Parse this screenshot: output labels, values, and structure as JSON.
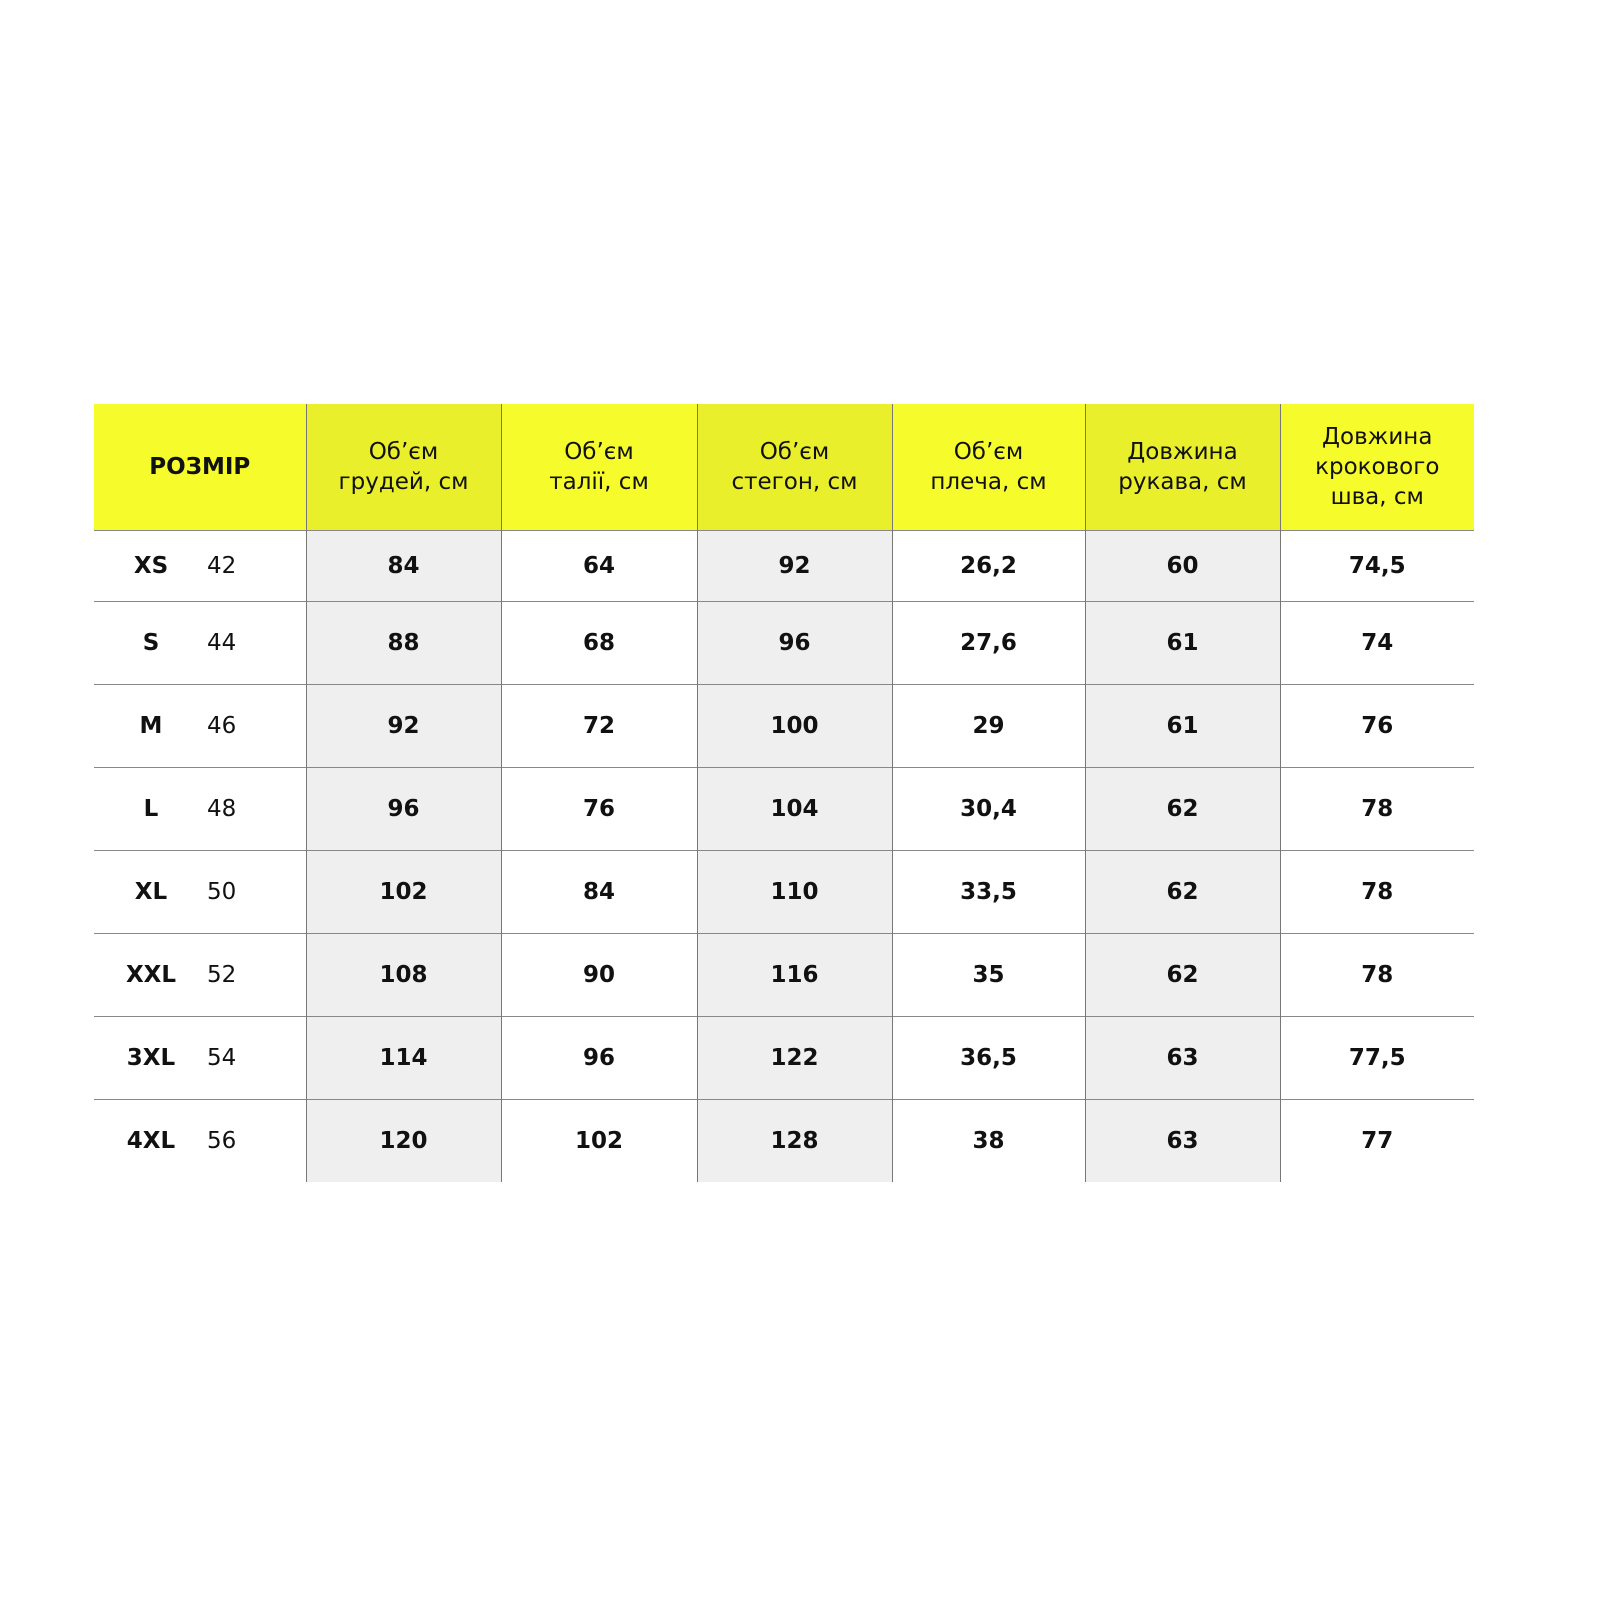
{
  "table": {
    "headers": [
      [
        "РОЗМІР"
      ],
      [
        "Об’єм",
        "грудей, см"
      ],
      [
        "Об’єм",
        "талії, см"
      ],
      [
        "Об’єм",
        "стегон, см"
      ],
      [
        "Об’єм",
        "плеча, см"
      ],
      [
        "Довжина",
        "рукава, см"
      ],
      [
        "Довжина",
        "крокового",
        "шва, см"
      ]
    ],
    "rows": [
      {
        "size": "XS",
        "eu": "42",
        "values": [
          "84",
          "64",
          "92",
          "26,2",
          "60",
          "74,5"
        ]
      },
      {
        "size": "S",
        "eu": "44",
        "values": [
          "88",
          "68",
          "96",
          "27,6",
          "61",
          "74"
        ]
      },
      {
        "size": "M",
        "eu": "46",
        "values": [
          "92",
          "72",
          "100",
          "29",
          "61",
          "76"
        ]
      },
      {
        "size": "L",
        "eu": "48",
        "values": [
          "96",
          "76",
          "104",
          "30,4",
          "62",
          "78"
        ]
      },
      {
        "size": "XL",
        "eu": "50",
        "values": [
          "102",
          "84",
          "110",
          "33,5",
          "62",
          "78"
        ]
      },
      {
        "size": "XXL",
        "eu": "52",
        "values": [
          "108",
          "90",
          "116",
          "35",
          "62",
          "78"
        ]
      },
      {
        "size": "3XL",
        "eu": "54",
        "values": [
          "114",
          "96",
          "122",
          "36,5",
          "63",
          "77,5"
        ]
      },
      {
        "size": "4XL",
        "eu": "56",
        "values": [
          "120",
          "102",
          "128",
          "38",
          "63",
          "77"
        ]
      }
    ]
  },
  "colors": {
    "header_light": "#f6fb2c",
    "header_dark": "#e9ef2b",
    "shade": "#efefef"
  }
}
